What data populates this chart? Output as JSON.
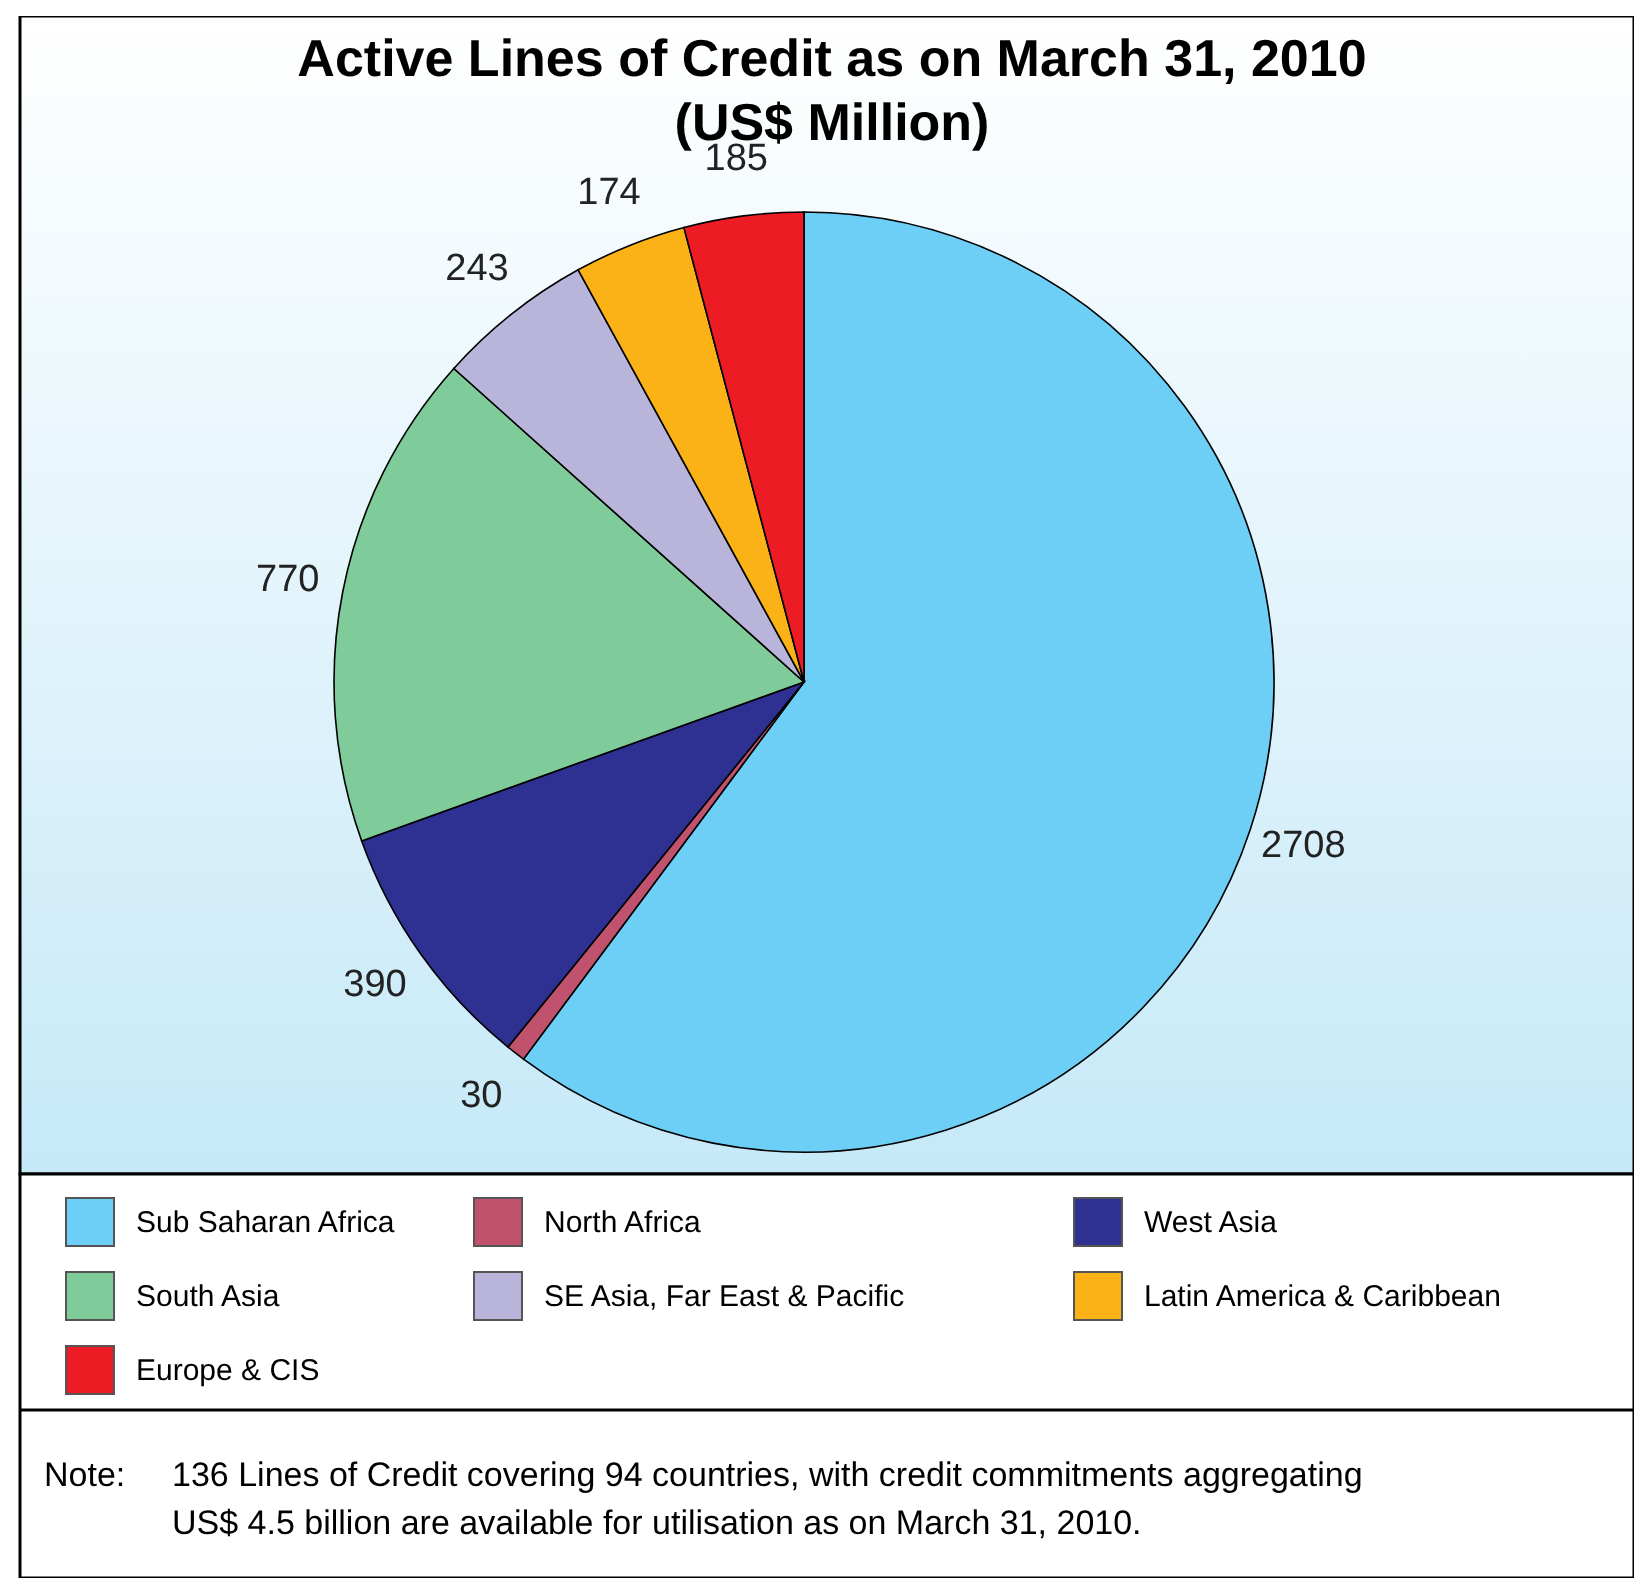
{
  "chart_data": {
    "type": "pie",
    "title": "Active Lines of Credit as on March 31, 2010",
    "subtitle": "(US$ Million)",
    "categories": [
      "Sub Saharan Africa",
      "North Africa",
      "West Asia",
      "South Asia",
      "SE Asia, Far East & Pacific",
      "Latin America & Caribbean",
      "Europe & CIS"
    ],
    "values": [
      2708,
      30,
      390,
      770,
      243,
      174,
      185
    ],
    "colors": [
      "#6dcff6",
      "#c0526e",
      "#2e3192",
      "#7fcb9a",
      "#b9b4da",
      "#fbb216",
      "#ed1c24"
    ],
    "data_labels": true,
    "legend": "bottom",
    "annotations": [
      "Note: 136 Lines of Credit covering 94 countries, with credit commitments aggregating US$ 4.5 billion are available for utilisation as on March 31, 2010."
    ]
  }
}
